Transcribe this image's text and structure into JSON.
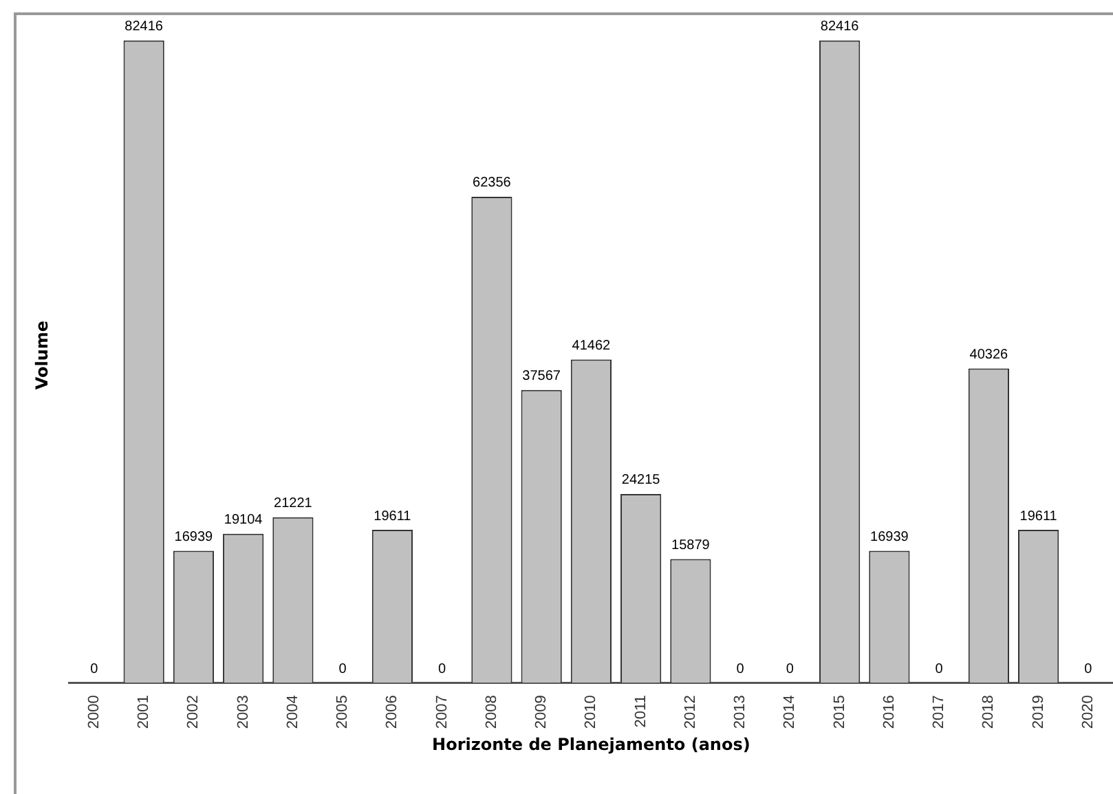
{
  "chart_data": {
    "type": "bar",
    "xlabel": "Horizonte de Planejamento (anos)",
    "ylabel": "Volume",
    "categories": [
      "2000",
      "2001",
      "2002",
      "2003",
      "2004",
      "2005",
      "2006",
      "2007",
      "2008",
      "2009",
      "2010",
      "2011",
      "2012",
      "2013",
      "2014",
      "2015",
      "2016",
      "2017",
      "2018",
      "2019",
      "2020"
    ],
    "values": [
      0,
      82416,
      16939,
      19104,
      21221,
      0,
      19611,
      0,
      62356,
      37567,
      41462,
      24215,
      15879,
      0,
      0,
      82416,
      16939,
      0,
      40326,
      19611,
      0
    ],
    "color": "#c0c0c0",
    "data_labels": true,
    "tick_labels": "x",
    "grid": false,
    "legend": false
  }
}
